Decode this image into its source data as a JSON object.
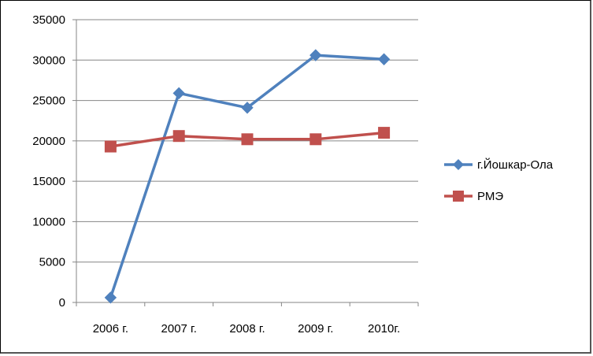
{
  "chart_data": {
    "type": "line",
    "categories": [
      "2006 г.",
      "2007 г.",
      "2008 г.",
      "2009 г.",
      "2010г."
    ],
    "ylim": [
      0,
      35000
    ],
    "yticks": [
      0,
      5000,
      10000,
      15000,
      20000,
      25000,
      30000,
      35000
    ],
    "grid": true,
    "legend_position": "right",
    "series": [
      {
        "name": "г.Йошкар-Ола",
        "values": [
          600,
          25900,
          24100,
          30600,
          30100
        ],
        "color": "#4F81BD",
        "marker": "diamond"
      },
      {
        "name": "РМЭ",
        "values": [
          19300,
          20600,
          20200,
          20200,
          21000
        ],
        "color": "#C0504D",
        "marker": "square"
      }
    ]
  }
}
